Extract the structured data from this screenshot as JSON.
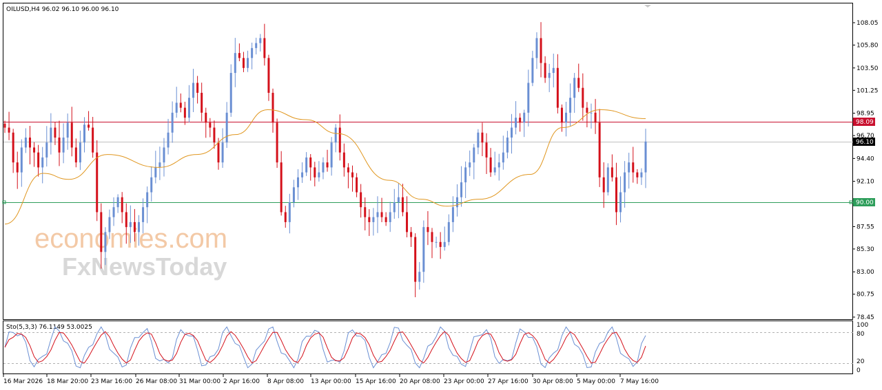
{
  "header": {
    "symbol_info": "OILUSD,H4  96.02 96.10 96.00 96.10"
  },
  "watermark": {
    "line1": "economies.com",
    "line2": "FxNewsToday"
  },
  "price_axis": {
    "ticks": [
      "108.05",
      "105.80",
      "103.50",
      "101.25",
      "98.95",
      "96.70",
      "94.40",
      "92.10",
      "89.85",
      "87.55",
      "85.30",
      "83.00",
      "80.75",
      "78.45"
    ],
    "current_price_label": "96.10",
    "upper_level_label": "98.09",
    "lower_level_label": "90.00"
  },
  "stoch": {
    "title": "Sto(5,3,3) 76.1149 53.0025",
    "ticks": [
      "100",
      "80",
      "20",
      "0"
    ]
  },
  "time_axis": {
    "ticks": [
      "16 Mar 2026",
      "18 Mar 20:00",
      "23 Mar 16:00",
      "26 Mar 08:00",
      "31 Mar 00:00",
      "2 Apr 16:00",
      "8 Apr 08:00",
      "13 Apr 00:00",
      "15 Apr 16:00",
      "20 Apr 08:00",
      "23 Apr 00:00",
      "27 Apr 16:00",
      "30 Apr 08:00",
      "5 May 00:00",
      "7 May 16:00"
    ]
  },
  "colors": {
    "bull": "#6a8fd3",
    "bear": "#d4101a",
    "ma": "#e0961e",
    "resistance": "#c8102e",
    "support": "#2e9e5b",
    "stoch_main": "#6a8fd3",
    "stoch_signal": "#d4101a"
  },
  "chart_data": {
    "type": "candlestick",
    "symbol": "OILUSD",
    "timeframe": "H4",
    "last_bar": {
      "open": 96.02,
      "high": 96.1,
      "low": 96.0,
      "close": 96.1
    },
    "price_range": [
      78.45,
      108.05
    ],
    "horizontal_levels": [
      98.09,
      90.0
    ],
    "current_price": 96.1,
    "closes": [
      97.5,
      97.0,
      94.0,
      93.0,
      95.5,
      96.5,
      95.5,
      95.0,
      93.5,
      94.5,
      96.0,
      97.5,
      96.5,
      95.0,
      96.5,
      98.0,
      95.5,
      94.0,
      96.0,
      97.8,
      97.5,
      95.0,
      89.0,
      85.0,
      87.0,
      88.5,
      89.5,
      90.5,
      89.0,
      87.5,
      88.0,
      87.0,
      88.0,
      89.5,
      91.0,
      92.5,
      93.5,
      94.0,
      95.5,
      97.0,
      99.0,
      100.0,
      99.5,
      98.5,
      100.5,
      102.0,
      101.0,
      99.0,
      98.0,
      97.5,
      96.0,
      94.0,
      96.0,
      99.0,
      103.0,
      105.0,
      104.5,
      103.5,
      104.5,
      105.5,
      106.0,
      106.5,
      104.5,
      101.0,
      98.0,
      94.0,
      89.0,
      88.0,
      90.0,
      91.5,
      92.5,
      93.0,
      94.5,
      93.5,
      92.5,
      93.0,
      94.0,
      93.5,
      96.0,
      97.5,
      95.0,
      93.5,
      93.0,
      92.5,
      91.0,
      89.5,
      88.5,
      88.0,
      88.5,
      89.0,
      88.5,
      88.0,
      89.0,
      90.0,
      90.5,
      89.0,
      87.0,
      86.5,
      82.0,
      83.0,
      87.5,
      87.0,
      86.0,
      86.0,
      85.5,
      86.0,
      88.0,
      89.5,
      90.5,
      92.0,
      93.5,
      94.0,
      95.5,
      97.0,
      96.0,
      94.5,
      93.0,
      93.5,
      94.0,
      95.0,
      96.5,
      97.5,
      98.5,
      98.0,
      99.0,
      102.0,
      104.5,
      106.5,
      104.0,
      102.5,
      103.0,
      103.5,
      99.5,
      98.0,
      99.0,
      100.5,
      102.5,
      101.5,
      99.5,
      99.0,
      99.0,
      98.0,
      92.5,
      91.0,
      93.5,
      92.5,
      89.0,
      91.0,
      93.0,
      94.0,
      93.0,
      92.5,
      93.0,
      96.1
    ],
    "moving_average": [
      {
        "x_frac": 0.0,
        "y": 87.8
      },
      {
        "x_frac": 0.06,
        "y": 92.9
      },
      {
        "x_frac": 0.1,
        "y": 92.3
      },
      {
        "x_frac": 0.16,
        "y": 94.8
      },
      {
        "x_frac": 0.24,
        "y": 93.5
      },
      {
        "x_frac": 0.3,
        "y": 94.8
      },
      {
        "x_frac": 0.36,
        "y": 96.8
      },
      {
        "x_frac": 0.41,
        "y": 99.3
      },
      {
        "x_frac": 0.47,
        "y": 98.3
      },
      {
        "x_frac": 0.52,
        "y": 96.9
      },
      {
        "x_frac": 0.6,
        "y": 92.2
      },
      {
        "x_frac": 0.65,
        "y": 90.3
      },
      {
        "x_frac": 0.69,
        "y": 89.6
      },
      {
        "x_frac": 0.74,
        "y": 90.3
      },
      {
        "x_frac": 0.82,
        "y": 92.8
      },
      {
        "x_frac": 0.87,
        "y": 97.5
      },
      {
        "x_frac": 0.93,
        "y": 99.3
      },
      {
        "x_frac": 1.0,
        "y": 98.4
      }
    ],
    "stochastic": {
      "params": "5,3,3",
      "main": 76.1149,
      "signal": 53.0025,
      "levels": [
        80,
        20
      ],
      "range": [
        0,
        100
      ]
    }
  }
}
